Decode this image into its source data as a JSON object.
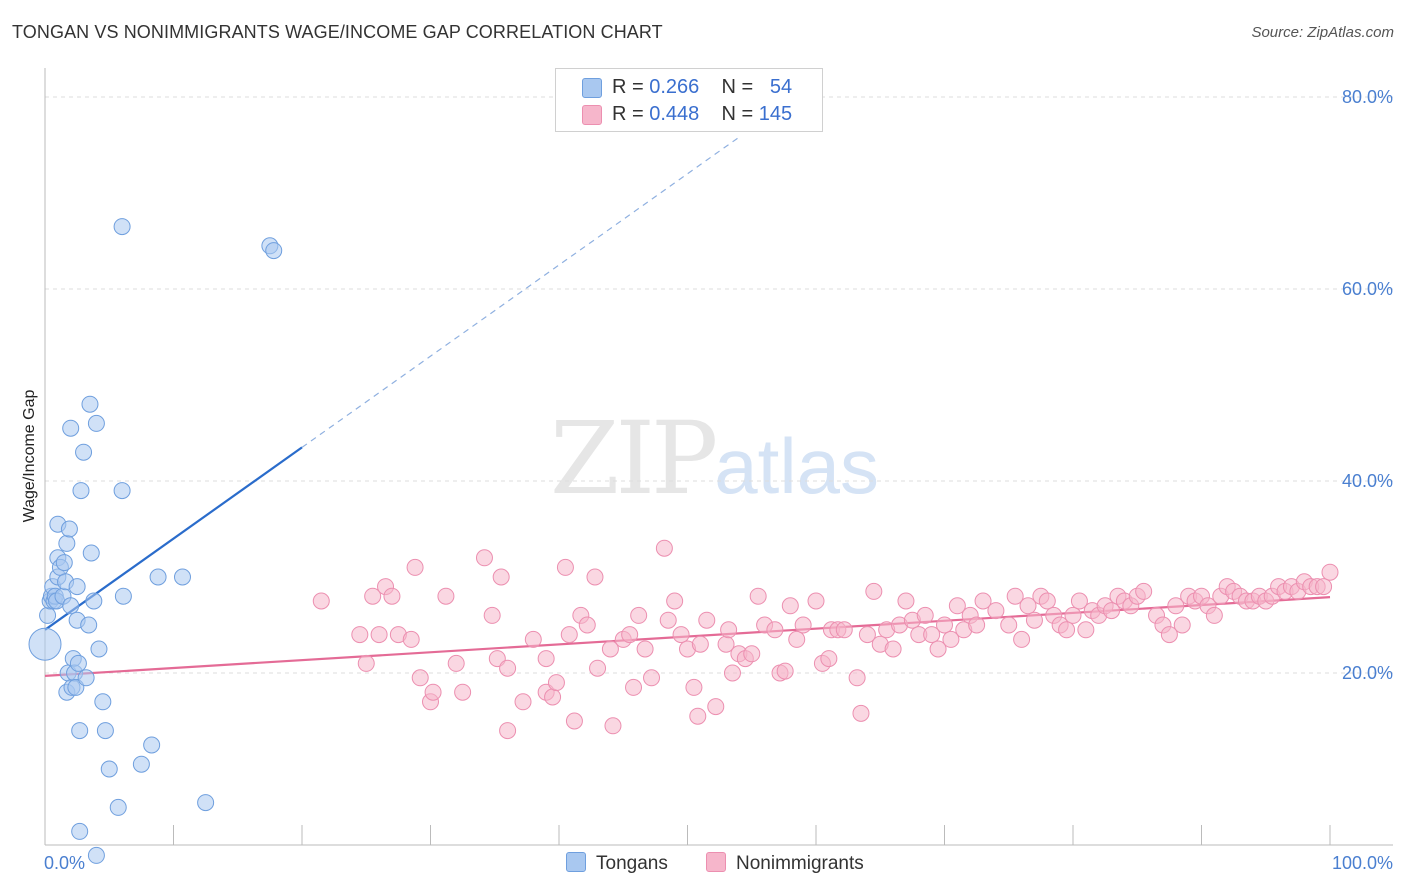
{
  "header": {
    "title": "TONGAN VS NONIMMIGRANTS WAGE/INCOME GAP CORRELATION CHART",
    "source": "Source: ZipAtlas.com"
  },
  "watermark": {
    "zip": "ZIP",
    "atlas": "atlas"
  },
  "legend": {
    "rows": [
      {
        "r_label": "R =",
        "r_value": "0.266",
        "n_label": "N =",
        "n_value": "54",
        "color": "#a9c8f0"
      },
      {
        "r_label": "R =",
        "r_value": "0.448",
        "n_label": "N =",
        "n_value": "145",
        "color": "#f6b6cb"
      }
    ]
  },
  "bottom_legend": {
    "tongans": "Tongans",
    "nonimmigrants": "Nonimmigrants"
  },
  "colors": {
    "tongans_fill": "#a9c8f0",
    "tongans_stroke": "#6f9fde",
    "tongans_line": "#2a6ccb",
    "nonimm_fill": "#f6b6cb",
    "nonimm_stroke": "#ec8fb0",
    "nonimm_line": "#e46b96",
    "tick_color": "#4a7fd0",
    "grid": "#dddddd"
  },
  "chart_data": {
    "type": "scatter",
    "title": "TONGAN VS NONIMMIGRANTS WAGE/INCOME GAP CORRELATION CHART",
    "xlabel": "",
    "ylabel": "Wage/Income Gap",
    "xlim": [
      0,
      100
    ],
    "ylim": [
      0,
      80
    ],
    "x_tick_labels": [
      "0.0%",
      "100.0%"
    ],
    "y_ticks": [
      20,
      40,
      60,
      80
    ],
    "y_tick_labels": [
      "20.0%",
      "40.0%",
      "60.0%",
      "80.0%"
    ],
    "grid": "horizontal dashed",
    "legend_position": "top-center",
    "series": [
      {
        "name": "Tongans",
        "R": 0.266,
        "N": 54,
        "trend": {
          "x": [
            0,
            20
          ],
          "y": [
            24.5,
            43.5
          ],
          "extended_to": [
            54,
            75.8
          ]
        },
        "points": [
          [
            0,
            23,
            2.2
          ],
          [
            0.2,
            26,
            1
          ],
          [
            0.4,
            27.5,
            1
          ],
          [
            0.5,
            28,
            1
          ],
          [
            0.6,
            29,
            1
          ],
          [
            0.7,
            27.5,
            1
          ],
          [
            0.8,
            28,
            1
          ],
          [
            0.9,
            27.5,
            1
          ],
          [
            1,
            30,
            1
          ],
          [
            1,
            32,
            1
          ],
          [
            1,
            35.5,
            1
          ],
          [
            1.2,
            31,
            1
          ],
          [
            1.4,
            28,
            1
          ],
          [
            1.5,
            31.5,
            1
          ],
          [
            1.6,
            29.5,
            1
          ],
          [
            1.7,
            33.5,
            1
          ],
          [
            1.7,
            18,
            1
          ],
          [
            1.8,
            20,
            1
          ],
          [
            1.9,
            35,
            1
          ],
          [
            2,
            27,
            1
          ],
          [
            2,
            45.5,
            1
          ],
          [
            2.1,
            18.5,
            1
          ],
          [
            2.2,
            21.5,
            1
          ],
          [
            2.3,
            20,
            1
          ],
          [
            2.4,
            18.5,
            1
          ],
          [
            2.5,
            25.5,
            1
          ],
          [
            2.5,
            29,
            1
          ],
          [
            2.6,
            21,
            1
          ],
          [
            2.7,
            14,
            1
          ],
          [
            2.7,
            3.5,
            1
          ],
          [
            2.8,
            39,
            1
          ],
          [
            3,
            43,
            1
          ],
          [
            3.2,
            19.5,
            1
          ],
          [
            3.4,
            25,
            1
          ],
          [
            3.5,
            48,
            1
          ],
          [
            3.6,
            32.5,
            1
          ],
          [
            3.8,
            27.5,
            1
          ],
          [
            4,
            46,
            1
          ],
          [
            4,
            1,
            1
          ],
          [
            4.2,
            22.5,
            1
          ],
          [
            4.5,
            17,
            1
          ],
          [
            4.7,
            14,
            1
          ],
          [
            5,
            10,
            1
          ],
          [
            5.7,
            6,
            1
          ],
          [
            6,
            66.5,
            1
          ],
          [
            6,
            39,
            1
          ],
          [
            6.1,
            28,
            1
          ],
          [
            7.5,
            10.5,
            1
          ],
          [
            8.3,
            12.5,
            1
          ],
          [
            8.8,
            30,
            1
          ],
          [
            10.7,
            30,
            1
          ],
          [
            12.5,
            6.5,
            1
          ],
          [
            17.5,
            64.5,
            1
          ],
          [
            17.8,
            64,
            1
          ]
        ]
      },
      {
        "name": "Nonimmigrants",
        "R": 0.448,
        "N": 145,
        "trend": {
          "x": [
            0,
            100
          ],
          "y": [
            19.7,
            27.9
          ]
        },
        "points": [
          [
            21.5,
            27.5,
            1
          ],
          [
            24.5,
            24,
            1
          ],
          [
            25,
            21,
            1
          ],
          [
            25.5,
            28,
            1
          ],
          [
            26,
            24,
            1
          ],
          [
            26.5,
            29,
            1
          ],
          [
            27,
            28,
            1
          ],
          [
            27.5,
            24,
            1
          ],
          [
            28.5,
            23.5,
            1
          ],
          [
            28.8,
            31,
            1
          ],
          [
            29.2,
            19.5,
            1
          ],
          [
            30,
            17,
            1
          ],
          [
            30.2,
            18,
            1
          ],
          [
            31.2,
            28,
            1
          ],
          [
            32,
            21,
            1
          ],
          [
            32.5,
            18,
            1
          ],
          [
            34.2,
            32,
            1
          ],
          [
            34.8,
            26,
            1
          ],
          [
            35.2,
            21.5,
            1
          ],
          [
            35.5,
            30,
            1
          ],
          [
            36,
            20.5,
            1
          ],
          [
            36,
            14,
            1
          ],
          [
            37.2,
            17,
            1
          ],
          [
            38,
            23.5,
            1
          ],
          [
            39,
            18,
            1
          ],
          [
            39,
            21.5,
            1
          ],
          [
            39.5,
            17.5,
            1
          ],
          [
            39.8,
            19,
            1
          ],
          [
            40.5,
            31,
            1
          ],
          [
            40.8,
            24,
            1
          ],
          [
            41.2,
            15,
            1
          ],
          [
            41.7,
            26,
            1
          ],
          [
            42.2,
            25,
            1
          ],
          [
            42.8,
            30,
            1
          ],
          [
            43,
            20.5,
            1
          ],
          [
            44,
            22.5,
            1
          ],
          [
            44.2,
            14.5,
            1
          ],
          [
            45,
            23.5,
            1
          ],
          [
            45.5,
            24,
            1
          ],
          [
            45.8,
            18.5,
            1
          ],
          [
            46.2,
            26,
            1
          ],
          [
            46.7,
            22.5,
            1
          ],
          [
            47.2,
            19.5,
            1
          ],
          [
            48.2,
            33,
            1
          ],
          [
            48.5,
            25.5,
            1
          ],
          [
            49,
            27.5,
            1
          ],
          [
            49.5,
            24,
            1
          ],
          [
            50,
            22.5,
            1
          ],
          [
            50.5,
            18.5,
            1
          ],
          [
            50.8,
            15.5,
            1
          ],
          [
            51,
            23,
            1
          ],
          [
            51.5,
            25.5,
            1
          ],
          [
            52.2,
            16.5,
            1
          ],
          [
            53,
            23,
            1
          ],
          [
            53.2,
            24.5,
            1
          ],
          [
            53.5,
            20,
            1
          ],
          [
            54,
            22,
            1
          ],
          [
            54.5,
            21.5,
            1
          ],
          [
            55,
            22,
            1
          ],
          [
            55.5,
            28,
            1
          ],
          [
            56,
            25,
            1
          ],
          [
            56.8,
            24.5,
            1
          ],
          [
            57.2,
            20,
            1
          ],
          [
            57.6,
            20.2,
            1
          ],
          [
            58,
            27,
            1
          ],
          [
            58.5,
            23.5,
            1
          ],
          [
            59,
            25,
            1
          ],
          [
            60,
            27.5,
            1
          ],
          [
            60.5,
            21,
            1
          ],
          [
            61,
            21.5,
            1
          ],
          [
            61.2,
            24.5,
            1
          ],
          [
            61.7,
            24.5,
            1
          ],
          [
            62.2,
            24.5,
            1
          ],
          [
            63.2,
            19.5,
            1
          ],
          [
            63.5,
            15.8,
            1
          ],
          [
            64,
            24,
            1
          ],
          [
            64.5,
            28.5,
            1
          ],
          [
            65,
            23,
            1
          ],
          [
            65.5,
            24.5,
            1
          ],
          [
            66,
            22.5,
            1
          ],
          [
            66.5,
            25,
            1
          ],
          [
            67,
            27.5,
            1
          ],
          [
            67.5,
            25.5,
            1
          ],
          [
            68,
            24,
            1
          ],
          [
            68.5,
            26,
            1
          ],
          [
            69,
            24,
            1
          ],
          [
            69.5,
            22.5,
            1
          ],
          [
            70,
            25,
            1
          ],
          [
            70.5,
            23.5,
            1
          ],
          [
            71,
            27,
            1
          ],
          [
            71.5,
            24.5,
            1
          ],
          [
            72,
            26,
            1
          ],
          [
            72.5,
            25,
            1
          ],
          [
            73,
            27.5,
            1
          ],
          [
            74,
            26.5,
            1
          ],
          [
            75,
            25,
            1
          ],
          [
            75.5,
            28,
            1
          ],
          [
            76,
            23.5,
            1
          ],
          [
            76.5,
            27,
            1
          ],
          [
            77,
            25.5,
            1
          ],
          [
            77.5,
            28,
            1
          ],
          [
            78,
            27.5,
            1
          ],
          [
            78.5,
            26,
            1
          ],
          [
            79,
            25,
            1
          ],
          [
            79.5,
            24.5,
            1
          ],
          [
            80,
            26,
            1
          ],
          [
            80.5,
            27.5,
            1
          ],
          [
            81,
            24.5,
            1
          ],
          [
            81.5,
            26.5,
            1
          ],
          [
            82,
            26,
            1
          ],
          [
            82.5,
            27,
            1
          ],
          [
            83,
            26.5,
            1
          ],
          [
            83.5,
            28,
            1
          ],
          [
            84,
            27.5,
            1
          ],
          [
            84.5,
            27,
            1
          ],
          [
            85,
            28,
            1
          ],
          [
            85.5,
            28.5,
            1
          ],
          [
            86.5,
            26,
            1
          ],
          [
            87,
            25,
            1
          ],
          [
            87.5,
            24,
            1
          ],
          [
            88,
            27,
            1
          ],
          [
            88.5,
            25,
            1
          ],
          [
            89,
            28,
            1
          ],
          [
            89.5,
            27.5,
            1
          ],
          [
            90,
            28,
            1
          ],
          [
            90.5,
            27,
            1
          ],
          [
            91,
            26,
            1
          ],
          [
            91.5,
            28,
            1
          ],
          [
            92,
            29,
            1
          ],
          [
            92.5,
            28.5,
            1
          ],
          [
            93,
            28,
            1
          ],
          [
            93.5,
            27.5,
            1
          ],
          [
            94,
            27.5,
            1
          ],
          [
            94.5,
            28,
            1
          ],
          [
            95,
            27.5,
            1
          ],
          [
            95.5,
            28,
            1
          ],
          [
            96,
            29,
            1
          ],
          [
            96.5,
            28.5,
            1
          ],
          [
            97,
            29,
            1
          ],
          [
            97.5,
            28.5,
            1
          ],
          [
            98,
            29.5,
            1
          ],
          [
            98.5,
            29,
            1
          ],
          [
            99,
            29,
            1
          ],
          [
            99.5,
            29,
            1
          ],
          [
            100,
            30.5,
            1
          ]
        ]
      }
    ]
  }
}
